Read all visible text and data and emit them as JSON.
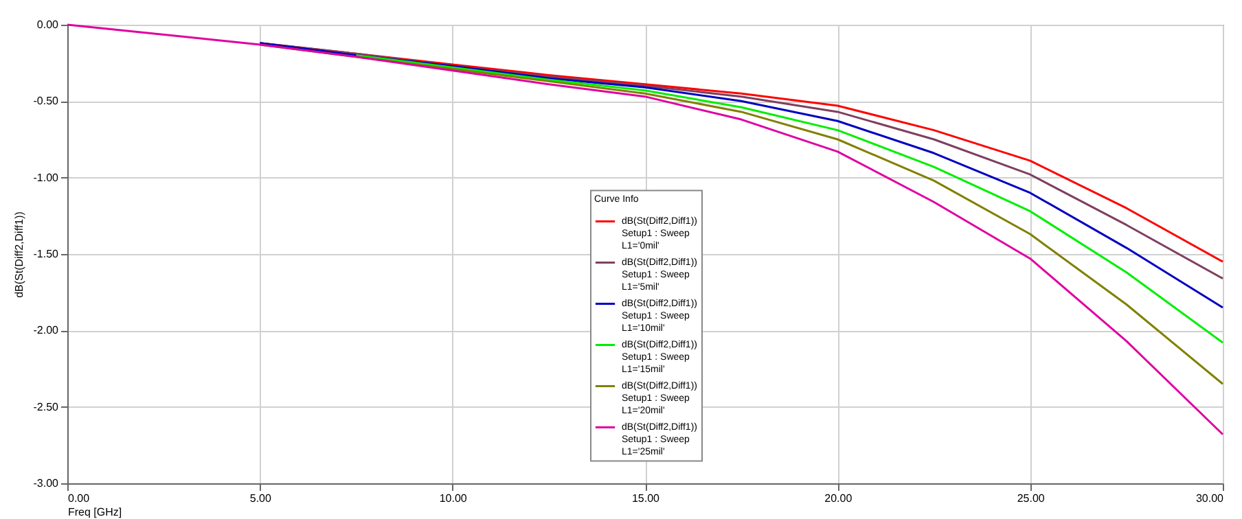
{
  "chart_data": {
    "type": "line",
    "xlabel": "Freq [GHz]",
    "ylabel": "dB(St(Diff2,Diff1))",
    "legend_title": "Curve Info",
    "x": [
      0,
      5,
      7.5,
      10,
      12.5,
      15,
      17.5,
      20,
      22.5,
      25,
      27.5,
      30
    ],
    "series": [
      {
        "name": "dB(St(Diff2,Diff1))\nSetup1 : Sweep\nL1='0mil'",
        "color": "#ff0000",
        "values": [
          null,
          -0.12,
          -0.19,
          -0.26,
          -0.33,
          -0.39,
          -0.45,
          -0.53,
          -0.69,
          -0.89,
          -1.2,
          -1.55
        ]
      },
      {
        "name": "dB(St(Diff2,Diff1))\nSetup1 : Sweep\nL1='5mil'",
        "color": "#7f3f5f",
        "values": [
          null,
          -0.12,
          -0.19,
          -0.27,
          -0.34,
          -0.4,
          -0.47,
          -0.57,
          -0.75,
          -0.98,
          -1.31,
          -1.66
        ]
      },
      {
        "name": "dB(St(Diff2,Diff1))\nSetup1 : Sweep\nL1='10mil'",
        "color": "#0000c0",
        "values": [
          null,
          -0.12,
          -0.2,
          -0.27,
          -0.35,
          -0.41,
          -0.5,
          -0.63,
          -0.84,
          -1.1,
          -1.46,
          -1.85
        ]
      },
      {
        "name": "dB(St(Diff2,Diff1))\nSetup1 : Sweep\nL1='15mil'",
        "color": "#00ee00",
        "values": [
          null,
          null,
          -0.2,
          -0.28,
          -0.36,
          -0.43,
          -0.54,
          -0.69,
          -0.93,
          -1.22,
          -1.62,
          -2.08
        ]
      },
      {
        "name": "dB(St(Diff2,Diff1))\nSetup1 : Sweep\nL1='20mil'",
        "color": "#808000",
        "values": [
          null,
          -0.13,
          -0.21,
          -0.29,
          -0.37,
          -0.45,
          -0.57,
          -0.75,
          -1.02,
          -1.37,
          -1.83,
          -2.35
        ]
      },
      {
        "name": "dB(St(Diff2,Diff1))\nSetup1 : Sweep\nL1='25mil'",
        "color": "#e000a0",
        "values": [
          0,
          -0.13,
          -0.21,
          -0.3,
          -0.39,
          -0.47,
          -0.62,
          -0.83,
          -1.16,
          -1.53,
          -2.07,
          -2.68
        ]
      }
    ],
    "xlim": [
      0,
      30
    ],
    "ylim": [
      -3,
      0
    ],
    "xticks": [
      {
        "value": 0,
        "label": "0.00"
      },
      {
        "value": 5,
        "label": "5.00"
      },
      {
        "value": 10,
        "label": "10.00"
      },
      {
        "value": 15,
        "label": "15.00"
      },
      {
        "value": 20,
        "label": "20.00"
      },
      {
        "value": 25,
        "label": "25.00"
      },
      {
        "value": 30,
        "label": "30.00"
      }
    ],
    "yticks": [
      {
        "value": -3,
        "label": "-3.00"
      },
      {
        "value": -2.5,
        "label": "-2.50"
      },
      {
        "value": -2,
        "label": "-2.00"
      },
      {
        "value": -1.5,
        "label": "-1.50"
      },
      {
        "value": -1,
        "label": "-1.00"
      },
      {
        "value": -0.5,
        "label": "-0.50"
      },
      {
        "value": 0,
        "label": "0.00"
      }
    ],
    "grid": true,
    "legend": "bottom",
    "marker": "none",
    "line_style": "solid"
  }
}
